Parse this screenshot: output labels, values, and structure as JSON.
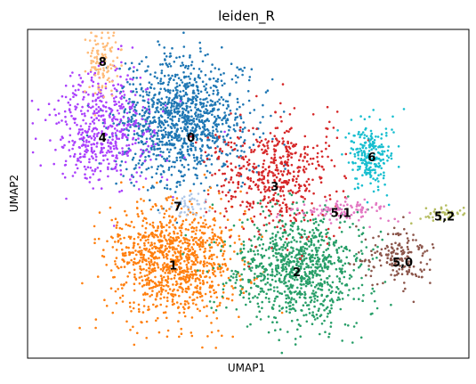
{
  "chart_data": {
    "type": "scatter",
    "title": "leiden_R",
    "xlabel": "UMAP1",
    "ylabel": "UMAP2",
    "grid": false,
    "legend": "on data",
    "ticks": "none",
    "clusters": [
      {
        "label": "0",
        "color": "#1f77b4",
        "cx": 0.35,
        "cy": 0.72,
        "sx": 0.075,
        "sy": 0.095,
        "n": 1150
      },
      {
        "label": "1",
        "color": "#ff7f0e",
        "cx": 0.33,
        "cy": 0.3,
        "sx": 0.075,
        "sy": 0.085,
        "n": 1050
      },
      {
        "label": "2",
        "color": "#279e68",
        "cx": 0.61,
        "cy": 0.27,
        "sx": 0.075,
        "sy": 0.085,
        "n": 950
      },
      {
        "label": "3",
        "color": "#d62728",
        "cx": 0.56,
        "cy": 0.56,
        "sx": 0.07,
        "sy": 0.085,
        "n": 520
      },
      {
        "label": "4",
        "color": "#aa40fc",
        "cx": 0.17,
        "cy": 0.7,
        "sx": 0.06,
        "sy": 0.09,
        "n": 520
      },
      {
        "label": "5,0",
        "color": "#8c564b",
        "cx": 0.84,
        "cy": 0.31,
        "sx": 0.04,
        "sy": 0.04,
        "n": 170
      },
      {
        "label": "5,1",
        "color": "#e377c2",
        "cx": 0.72,
        "cy": 0.45,
        "sx": 0.06,
        "sy": 0.015,
        "n": 110
      },
      {
        "label": "5,2",
        "color": "#b5bd61",
        "cx": 0.94,
        "cy": 0.44,
        "sx": 0.025,
        "sy": 0.012,
        "n": 45
      },
      {
        "label": "6",
        "color": "#17becf",
        "cx": 0.78,
        "cy": 0.62,
        "sx": 0.025,
        "sy": 0.055,
        "n": 230
      },
      {
        "label": "7",
        "color": "#aec7e8",
        "cx": 0.37,
        "cy": 0.47,
        "sx": 0.02,
        "sy": 0.02,
        "n": 40
      },
      {
        "label": "8",
        "color": "#ffbb78",
        "cx": 0.17,
        "cy": 0.9,
        "sx": 0.02,
        "sy": 0.05,
        "n": 110
      }
    ],
    "label_positions": [
      {
        "label": "8",
        "x": 0.17,
        "y": 0.9
      },
      {
        "label": "4",
        "x": 0.17,
        "y": 0.67
      },
      {
        "label": "0",
        "x": 0.37,
        "y": 0.67
      },
      {
        "label": "6",
        "x": 0.78,
        "y": 0.61
      },
      {
        "label": "3",
        "x": 0.56,
        "y": 0.52
      },
      {
        "label": "7",
        "x": 0.34,
        "y": 0.46
      },
      {
        "label": "5,1",
        "x": 0.71,
        "y": 0.44
      },
      {
        "label": "5,2",
        "x": 0.945,
        "y": 0.43
      },
      {
        "label": "1",
        "x": 0.33,
        "y": 0.28
      },
      {
        "label": "5,0",
        "x": 0.85,
        "y": 0.29
      },
      {
        "label": "2",
        "x": 0.61,
        "y": 0.26
      }
    ]
  }
}
